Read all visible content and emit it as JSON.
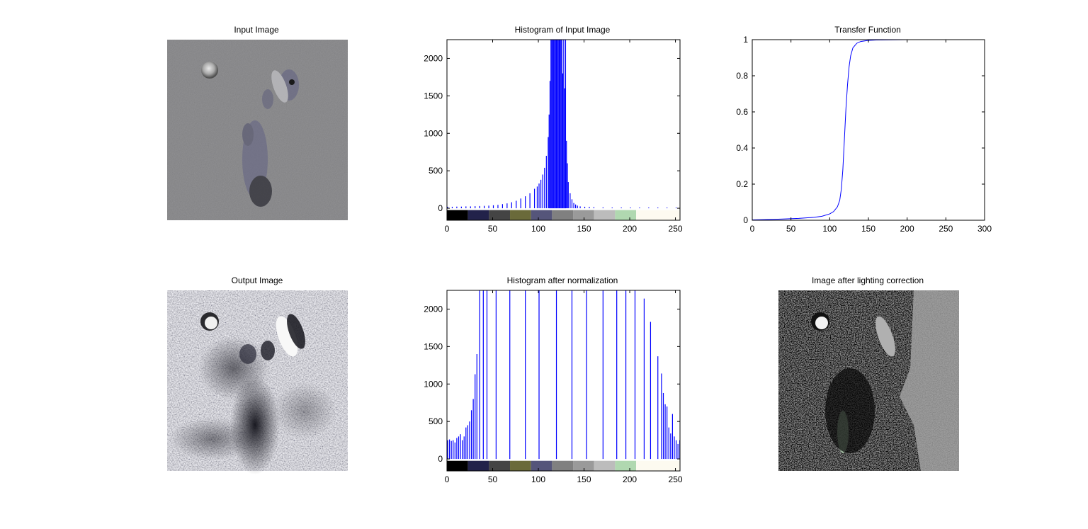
{
  "window": {
    "background": "#ffffff"
  },
  "chart_data": [
    {
      "type": "image",
      "title": "Input Image",
      "description_colors": [
        "#808080",
        "#6e6e88",
        "#2a2a2a",
        "#bdbdbd"
      ]
    },
    {
      "type": "bar",
      "title": "Histogram of Input Image",
      "xlim": [
        0,
        255
      ],
      "ylim": [
        -160,
        2250
      ],
      "xticks": [
        "0",
        "50",
        "100",
        "150",
        "200",
        "250"
      ],
      "yticks": [
        "0",
        "500",
        "1000",
        "1500",
        "2000"
      ],
      "bar_color": "#0000ff",
      "colorbar": [
        "#000000",
        "#22224a",
        "#444444",
        "#6a6a3a",
        "#55557a",
        "#808080",
        "#9a9a9a",
        "#bcbcbc",
        "#b0d8b0",
        "#fdfaf0"
      ],
      "bins": {
        "x": [
          0,
          5,
          10,
          15,
          20,
          25,
          30,
          35,
          40,
          45,
          50,
          55,
          60,
          65,
          70,
          75,
          80,
          85,
          90,
          95,
          98,
          100,
          102,
          104,
          106,
          108,
          110,
          111,
          112,
          113,
          114,
          115,
          116,
          117,
          118,
          119,
          120,
          121,
          122,
          123,
          124,
          125,
          126,
          127,
          128,
          129,
          130,
          131,
          132,
          134,
          136,
          138,
          140,
          142,
          145,
          150,
          155,
          160,
          170,
          180,
          190,
          200,
          210,
          220,
          230,
          240,
          250
        ],
        "values": [
          20,
          20,
          22,
          22,
          25,
          25,
          28,
          30,
          32,
          35,
          40,
          45,
          55,
          65,
          80,
          100,
          130,
          160,
          200,
          260,
          290,
          330,
          380,
          450,
          540,
          700,
          950,
          1250,
          1700,
          2250,
          2250,
          2250,
          2250,
          2250,
          2250,
          2250,
          2250,
          2250,
          2250,
          2250,
          2250,
          2250,
          1800,
          2250,
          1600,
          2250,
          900,
          600,
          350,
          200,
          120,
          70,
          50,
          35,
          25,
          20,
          18,
          15,
          12,
          10,
          10,
          10,
          10,
          10,
          10,
          10,
          10
        ]
      }
    },
    {
      "type": "line",
      "title": "Transfer Function",
      "xlim": [
        0,
        300
      ],
      "ylim": [
        0,
        1
      ],
      "xticks": [
        "0",
        "50",
        "100",
        "150",
        "200",
        "250",
        "300"
      ],
      "yticks": [
        "0",
        "0.2",
        "0.4",
        "0.6",
        "0.8",
        "1"
      ],
      "line_color": "#0000ff",
      "series": [
        {
          "x": [
            0,
            20,
            40,
            60,
            80,
            90,
            100,
            105,
            110,
            113,
            115,
            117,
            119,
            121,
            123,
            125,
            127,
            130,
            135,
            140,
            150,
            160,
            180,
            200,
            250
          ],
          "y": [
            0.002,
            0.004,
            0.007,
            0.01,
            0.016,
            0.022,
            0.035,
            0.048,
            0.075,
            0.11,
            0.17,
            0.28,
            0.45,
            0.62,
            0.75,
            0.85,
            0.91,
            0.955,
            0.98,
            0.99,
            0.996,
            0.998,
            0.999,
            1.0,
            1.0
          ]
        }
      ]
    },
    {
      "type": "image",
      "title": "Output Image",
      "description_colors": [
        "#f0f0f2",
        "#2a2a3a",
        "#8a8aa0",
        "#ffffff"
      ]
    },
    {
      "type": "bar",
      "title": "Histogram after normalization",
      "xlim": [
        0,
        255
      ],
      "ylim": [
        -160,
        2250
      ],
      "xticks": [
        "0",
        "50",
        "100",
        "150",
        "200",
        "250"
      ],
      "yticks": [
        "0",
        "500",
        "1000",
        "1500",
        "2000"
      ],
      "bar_color": "#0000ff",
      "colorbar": [
        "#000000",
        "#22224a",
        "#444444",
        "#6a6a3a",
        "#55557a",
        "#808080",
        "#9a9a9a",
        "#bcbcbc",
        "#b0d8b0",
        "#fdfaf0"
      ],
      "bins": {
        "x": [
          0,
          2,
          4,
          6,
          8,
          10,
          12,
          14,
          16,
          18,
          20,
          22,
          24,
          26,
          28,
          30,
          32,
          35,
          39,
          43,
          53,
          68,
          85,
          100,
          119,
          136,
          152,
          170,
          185,
          195,
          205,
          215,
          222,
          230,
          234,
          236,
          238,
          240,
          242,
          244,
          246,
          248,
          250,
          252,
          254
        ],
        "values": [
          250,
          260,
          240,
          250,
          220,
          280,
          300,
          330,
          250,
          300,
          420,
          450,
          500,
          650,
          800,
          1130,
          1400,
          2250,
          2250,
          2250,
          2250,
          2250,
          2250,
          2250,
          2250,
          2250,
          2250,
          2250,
          2250,
          2250,
          2250,
          2140,
          1830,
          1370,
          1140,
          880,
          730,
          700,
          420,
          340,
          600,
          300,
          250,
          200,
          250
        ]
      }
    },
    {
      "type": "image",
      "title": "Image after lighting correction",
      "description_colors": [
        "#000000",
        "#ffffff",
        "#a0a0a0",
        "#b8d8b8"
      ]
    }
  ]
}
